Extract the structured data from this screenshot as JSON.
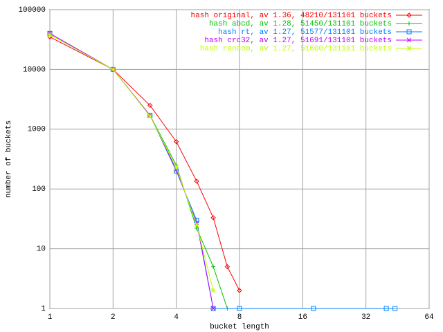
{
  "chart_data": {
    "type": "line",
    "xlabel": "bucket length",
    "ylabel": "number of buckets",
    "xscale": "log",
    "yscale": "log",
    "xlim": [
      1,
      64
    ],
    "ylim": [
      1,
      100000
    ],
    "xticks": [
      1,
      2,
      4,
      8,
      16,
      32,
      64
    ],
    "yticks": [
      1,
      10,
      100,
      1000,
      10000,
      100000
    ],
    "grid": true,
    "legend": "top-right",
    "series": [
      {
        "name": "hash original, av 1.36, 48210/131101 buckets",
        "color": "#ff0000",
        "marker": "diamond",
        "x": [
          1,
          2,
          3,
          4,
          5,
          6,
          7,
          8
        ],
        "values": [
          35000,
          10000,
          2500,
          620,
          135,
          33,
          5,
          2
        ]
      },
      {
        "name": "hash abcd, av 1.28, 51450/131101 buckets",
        "color": "#00c000",
        "marker": "plus",
        "x": [
          1,
          2,
          3,
          4,
          5,
          6,
          7
        ],
        "values": [
          40000,
          10000,
          1700,
          250,
          22,
          5,
          1
        ]
      },
      {
        "name": "hash rt, av 1.27, 51577/131101 buckets",
        "color": "#0080ff",
        "marker": "square",
        "x": [
          1,
          2,
          3,
          4,
          5,
          6,
          8,
          18,
          40,
          44
        ],
        "values": [
          40000,
          10000,
          1700,
          200,
          30,
          1,
          1,
          1,
          1,
          1
        ]
      },
      {
        "name": "hash crc32, av 1.27, 51691/131101 buckets",
        "color": "#c000ff",
        "marker": "cross",
        "x": [
          1,
          2,
          3,
          4,
          5,
          6
        ],
        "values": [
          40000,
          10000,
          1700,
          210,
          27,
          1
        ]
      },
      {
        "name": "hash random, av 1.27, 51600/131101 buckets",
        "color": "#c0ff00",
        "marker": "star",
        "x": [
          1,
          2,
          3,
          4,
          5,
          6
        ],
        "values": [
          38000,
          10000,
          1650,
          230,
          25,
          2
        ]
      }
    ]
  }
}
